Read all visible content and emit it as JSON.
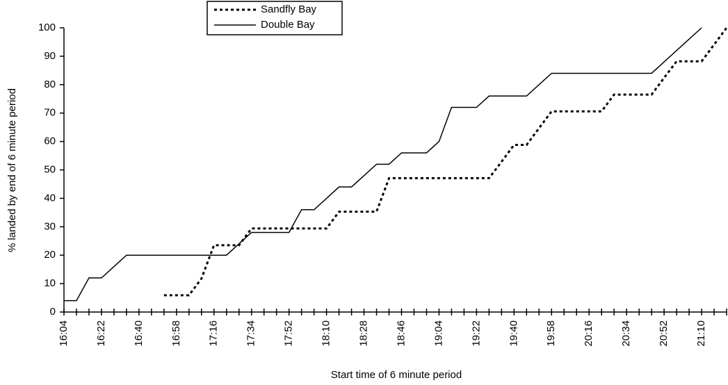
{
  "chart_data": {
    "type": "line",
    "xlabel": "Start time of 6 minute period",
    "ylabel": "% landed by end of 6 minute period",
    "ylim": [
      0,
      100
    ],
    "yticks": [
      0,
      10,
      20,
      30,
      40,
      50,
      60,
      70,
      80,
      90,
      100
    ],
    "legend": "top",
    "categories": [
      "16:04",
      null,
      null,
      "16:22",
      null,
      null,
      "16:40",
      null,
      null,
      "16:58",
      null,
      null,
      "17:16",
      null,
      null,
      "17:34",
      null,
      null,
      "17:52",
      null,
      null,
      "18:10",
      null,
      null,
      "18:28",
      null,
      null,
      "18:46",
      null,
      null,
      "19:04",
      null,
      null,
      "19:22",
      null,
      null,
      "19:40",
      null,
      null,
      "19:58",
      null,
      null,
      "20:16",
      null,
      null,
      "20:34",
      null,
      null,
      "20:52",
      null,
      null,
      "21:10",
      null,
      null
    ],
    "series": [
      {
        "name": "Sandfly Bay",
        "color": "#000000",
        "style": "dotted",
        "values": [
          null,
          null,
          null,
          null,
          null,
          null,
          null,
          null,
          5.9,
          5.9,
          5.9,
          11.8,
          23.5,
          23.5,
          23.5,
          29.4,
          29.4,
          29.4,
          29.4,
          29.4,
          29.4,
          29.4,
          35.3,
          35.3,
          35.3,
          35.3,
          47.1,
          47.1,
          47.1,
          47.1,
          47.1,
          47.1,
          47.1,
          47.1,
          47.1,
          52.9,
          58.8,
          58.8,
          64.7,
          70.6,
          70.6,
          70.6,
          70.6,
          70.6,
          76.5,
          76.5,
          76.5,
          76.5,
          82.4,
          88.2,
          88.2,
          88.2,
          94.1,
          100
        ]
      },
      {
        "name": "Double Bay",
        "color": "#000000",
        "style": "solid",
        "values": [
          4,
          4,
          12,
          12,
          16,
          20,
          20,
          20,
          20,
          20,
          20,
          20,
          20,
          20,
          24,
          28,
          28,
          28,
          28,
          36,
          36,
          40,
          44,
          44,
          48,
          52,
          52,
          56,
          56,
          56,
          60,
          72,
          72,
          72,
          76,
          76,
          76,
          76,
          80,
          84,
          84,
          84,
          84,
          84,
          84,
          84,
          84,
          84,
          88,
          92,
          96,
          100,
          null,
          null
        ]
      }
    ]
  }
}
